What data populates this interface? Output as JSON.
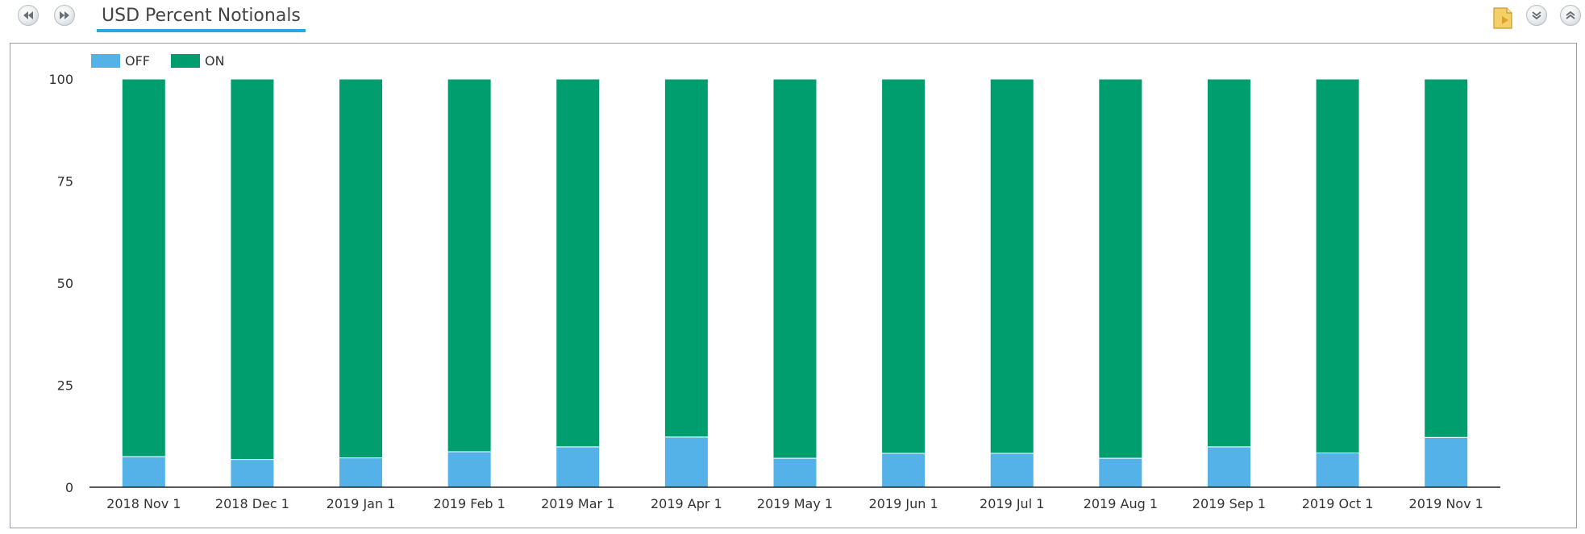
{
  "header": {
    "title": "USD Percent Notionals",
    "buttons": [
      "rewind-icon",
      "fast-forward-icon",
      "document-icon",
      "collapse-down-icon",
      "collapse-up-icon"
    ]
  },
  "colors": {
    "off": "#55b2e8",
    "on": "#009e6e",
    "accent": "#29a8e0"
  },
  "chart_data": {
    "type": "bar",
    "stacked": true,
    "categories": [
      "2018 Nov 1",
      "2018 Dec 1",
      "2019 Jan 1",
      "2019 Feb 1",
      "2019 Mar 1",
      "2019 Apr 1",
      "2019 May 1",
      "2019 Jun 1",
      "2019 Jul 1",
      "2019 Aug 1",
      "2019 Sep 1",
      "2019 Oct 1",
      "2019 Nov 1"
    ],
    "series": [
      {
        "name": "OFF",
        "color": "#55b2e8",
        "values": [
          7.5,
          6.8,
          7.2,
          8.7,
          9.9,
          12.3,
          7.1,
          8.3,
          8.3,
          7.1,
          9.9,
          8.4,
          12.2
        ]
      },
      {
        "name": "ON",
        "color": "#009e6e",
        "values": [
          92.5,
          93.2,
          92.8,
          91.3,
          90.1,
          87.7,
          92.9,
          91.7,
          91.7,
          92.9,
          90.1,
          91.6,
          87.8
        ]
      }
    ],
    "yticks": [
      0,
      25,
      50,
      75,
      100
    ],
    "ylim": [
      0,
      100
    ],
    "title": "",
    "xlabel": "",
    "ylabel": "",
    "legend": "top-left",
    "grid": false
  }
}
